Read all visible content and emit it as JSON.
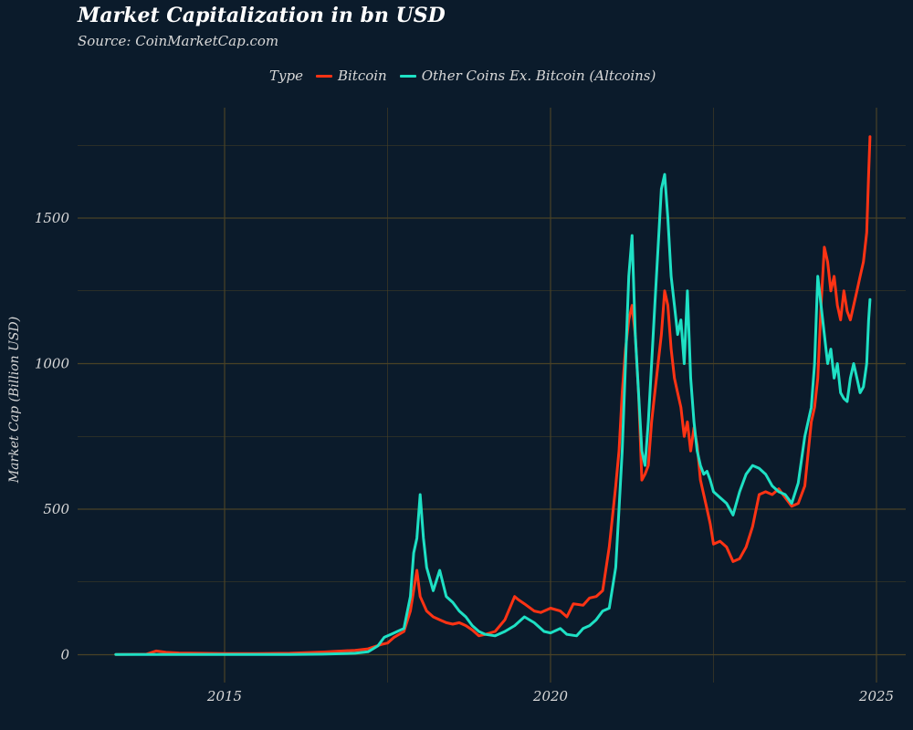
{
  "chart_data": {
    "type": "line",
    "title": "Market Capitalization in bn USD",
    "subtitle": "Source: CoinMarketCap.com",
    "xlabel": "",
    "ylabel": "Market Cap (Billion USD)",
    "legend_title": "Type",
    "legend_position": "top",
    "grid": true,
    "xlim": [
      2013.3,
      2025.0
    ],
    "ylim": [
      0,
      1800
    ],
    "x_ticks": [
      2015,
      2020,
      2025
    ],
    "x_tick_labels": [
      "2015",
      "2020",
      "2025"
    ],
    "y_ticks": [
      0,
      500,
      1000,
      1500
    ],
    "y_tick_labels": [
      "0",
      "500",
      "1000",
      "1500"
    ],
    "series": [
      {
        "name": "Bitcoin",
        "color": "#ff3314",
        "x": [
          2013.33,
          2013.8,
          2013.95,
          2014.1,
          2014.3,
          2014.6,
          2015.0,
          2015.5,
          2016.0,
          2016.5,
          2017.0,
          2017.2,
          2017.4,
          2017.5,
          2017.6,
          2017.75,
          2017.85,
          2017.95,
          2018.0,
          2018.1,
          2018.2,
          2018.3,
          2018.4,
          2018.5,
          2018.6,
          2018.7,
          2018.8,
          2018.9,
          2019.0,
          2019.15,
          2019.3,
          2019.45,
          2019.5,
          2019.6,
          2019.75,
          2019.85,
          2020.0,
          2020.15,
          2020.25,
          2020.35,
          2020.5,
          2020.6,
          2020.7,
          2020.8,
          2020.9,
          2021.0,
          2021.05,
          2021.1,
          2021.15,
          2021.2,
          2021.25,
          2021.3,
          2021.35,
          2021.4,
          2021.45,
          2021.5,
          2021.55,
          2021.6,
          2021.65,
          2021.7,
          2021.75,
          2021.8,
          2021.85,
          2021.9,
          2021.95,
          2022.0,
          2022.05,
          2022.1,
          2022.15,
          2022.2,
          2022.25,
          2022.3,
          2022.35,
          2022.4,
          2022.45,
          2022.5,
          2022.6,
          2022.7,
          2022.8,
          2022.9,
          2023.0,
          2023.1,
          2023.2,
          2023.3,
          2023.4,
          2023.5,
          2023.6,
          2023.7,
          2023.8,
          2023.9,
          2024.0,
          2024.05,
          2024.1,
          2024.15,
          2024.2,
          2024.25,
          2024.3,
          2024.35,
          2024.4,
          2024.45,
          2024.5,
          2024.55,
          2024.6,
          2024.65,
          2024.7,
          2024.75,
          2024.8,
          2024.85,
          2024.88,
          2024.9
        ],
        "values": [
          1,
          2,
          13,
          8,
          6,
          5,
          4,
          4,
          5,
          9,
          15,
          20,
          35,
          40,
          60,
          80,
          150,
          290,
          200,
          150,
          130,
          120,
          110,
          105,
          110,
          100,
          85,
          65,
          70,
          80,
          120,
          200,
          190,
          175,
          150,
          145,
          160,
          150,
          130,
          175,
          170,
          195,
          200,
          220,
          370,
          580,
          700,
          900,
          1050,
          1150,
          1200,
          1100,
          900,
          600,
          620,
          650,
          800,
          900,
          1000,
          1100,
          1250,
          1200,
          1050,
          950,
          900,
          850,
          750,
          800,
          700,
          780,
          720,
          600,
          550,
          500,
          450,
          380,
          390,
          370,
          320,
          330,
          370,
          440,
          550,
          560,
          550,
          570,
          540,
          510,
          520,
          580,
          800,
          850,
          950,
          1200,
          1400,
          1350,
          1250,
          1300,
          1200,
          1150,
          1250,
          1180,
          1150,
          1200,
          1250,
          1300,
          1350,
          1450,
          1650,
          1780
        ]
      },
      {
        "name": "Other Coins Ex. Bitcoin (Altcoins)",
        "color": "#1ee0c4",
        "x": [
          2013.33,
          2014.0,
          2015.0,
          2016.0,
          2016.5,
          2017.0,
          2017.2,
          2017.35,
          2017.45,
          2017.55,
          2017.65,
          2017.75,
          2017.85,
          2017.9,
          2017.95,
          2018.0,
          2018.05,
          2018.1,
          2018.2,
          2018.3,
          2018.4,
          2018.5,
          2018.6,
          2018.7,
          2018.8,
          2018.9,
          2019.0,
          2019.15,
          2019.3,
          2019.45,
          2019.6,
          2019.75,
          2019.9,
          2020.0,
          2020.15,
          2020.25,
          2020.4,
          2020.5,
          2020.6,
          2020.7,
          2020.8,
          2020.9,
          2021.0,
          2021.05,
          2021.1,
          2021.15,
          2021.2,
          2021.25,
          2021.3,
          2021.35,
          2021.4,
          2021.45,
          2021.5,
          2021.55,
          2021.6,
          2021.65,
          2021.7,
          2021.75,
          2021.8,
          2021.85,
          2021.9,
          2021.95,
          2022.0,
          2022.05,
          2022.1,
          2022.15,
          2022.2,
          2022.25,
          2022.3,
          2022.35,
          2022.4,
          2022.45,
          2022.5,
          2022.6,
          2022.7,
          2022.8,
          2022.9,
          2023.0,
          2023.1,
          2023.2,
          2023.3,
          2023.4,
          2023.5,
          2023.6,
          2023.7,
          2023.8,
          2023.9,
          2024.0,
          2024.05,
          2024.1,
          2024.15,
          2024.2,
          2024.25,
          2024.3,
          2024.35,
          2024.4,
          2024.45,
          2024.5,
          2024.55,
          2024.6,
          2024.65,
          2024.7,
          2024.75,
          2024.8,
          2024.85,
          2024.88,
          2024.9
        ],
        "values": [
          0.5,
          1,
          1,
          1,
          2,
          5,
          10,
          30,
          60,
          70,
          80,
          90,
          200,
          350,
          400,
          550,
          400,
          300,
          220,
          290,
          200,
          180,
          150,
          130,
          100,
          80,
          70,
          65,
          80,
          100,
          130,
          110,
          80,
          75,
          90,
          70,
          65,
          90,
          100,
          120,
          150,
          160,
          300,
          500,
          700,
          1000,
          1300,
          1440,
          1100,
          900,
          700,
          650,
          800,
          1000,
          1200,
          1400,
          1600,
          1650,
          1500,
          1300,
          1200,
          1100,
          1150,
          1000,
          1250,
          950,
          800,
          700,
          650,
          620,
          630,
          600,
          560,
          540,
          520,
          480,
          560,
          620,
          650,
          640,
          620,
          580,
          560,
          550,
          520,
          590,
          750,
          850,
          1000,
          1300,
          1200,
          1100,
          1000,
          1050,
          950,
          1000,
          900,
          880,
          870,
          950,
          1000,
          950,
          900,
          920,
          1000,
          1150,
          1220
        ]
      }
    ]
  }
}
